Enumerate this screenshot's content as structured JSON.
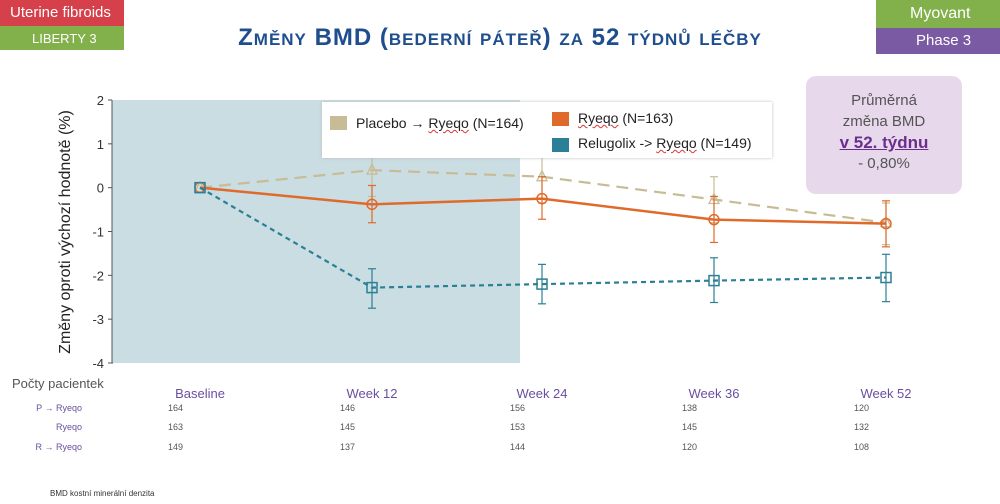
{
  "tags": {
    "uterine": "Uterine fibroids",
    "liberty": "LIBERTY 3",
    "myovant": "Myovant",
    "phase": "Phase 3",
    "colors": {
      "red": "#d6404a",
      "green": "#82b04a",
      "purple": "#7a5aa3"
    }
  },
  "title": "Změny BMD (bederní páteř) za 52 týdnů léčby",
  "chart_data": {
    "type": "line",
    "title": "",
    "ylabel": "Změny oproti výchozí hodnotě (%)",
    "xlabel": "",
    "ylim": [
      -4,
      2
    ],
    "yticks": [
      "2",
      "1",
      "0",
      "-1",
      "-2",
      "-3",
      "-4"
    ],
    "categories": [
      "Baseline",
      "Week 12",
      "Week 24",
      "Week 36",
      "Week 52"
    ],
    "shaded_region": {
      "from": "Baseline",
      "to": "Week 24",
      "color": "#c9dde3"
    },
    "series": [
      {
        "name": "Placebo → Ryeqo (N=164)",
        "color": "#c8bc96",
        "style": "long-dash",
        "marker": "triangle",
        "values": [
          0,
          0.4,
          0.25,
          -0.27,
          -0.8
        ],
        "err_low": [
          0,
          -0.2,
          -0.35,
          -0.8,
          -1.3
        ],
        "err_high": [
          0,
          0.9,
          0.7,
          0.25,
          -0.35
        ]
      },
      {
        "name": "Ryeqo (N=163)",
        "color": "#e06a2b",
        "style": "solid",
        "marker": "circle",
        "values": [
          0,
          -0.38,
          -0.25,
          -0.73,
          -0.82
        ],
        "err_low": [
          0,
          -0.8,
          -0.72,
          -1.25,
          -1.35
        ],
        "err_high": [
          0,
          0.05,
          0.25,
          -0.2,
          -0.3
        ]
      },
      {
        "name": "Relugolix -> Ryeqo (N=149)",
        "color": "#2b7f96",
        "style": "short-dash",
        "marker": "square",
        "values": [
          0,
          -2.28,
          -2.2,
          -2.12,
          -2.05
        ],
        "err_low": [
          0,
          -2.75,
          -2.65,
          -2.62,
          -2.6
        ],
        "err_high": [
          0,
          -1.85,
          -1.75,
          -1.6,
          -1.52
        ]
      }
    ]
  },
  "legend": {
    "placebo": {
      "prefix": "Placebo → ",
      "drug": "Ryeqo",
      "suffix": " (N=164)"
    },
    "ryeqo": {
      "drug": "Ryeqo",
      "suffix": " (N=163)"
    },
    "relugolix": {
      "prefix": "Relugolix -> ",
      "drug": "Ryeqo",
      "suffix": " (N=149)"
    }
  },
  "callout": {
    "line1": "Průměrná",
    "line2": "změna BMD",
    "line3": "v 52. týdnu",
    "line4": "- 0,80%"
  },
  "patient_counts": {
    "title": "Počty pacientek",
    "rows": [
      {
        "label": "P → Ryeqo",
        "values": [
          "164",
          "146",
          "156",
          "138",
          "120"
        ]
      },
      {
        "label": "Ryeqo",
        "values": [
          "163",
          "145",
          "153",
          "145",
          "132"
        ]
      },
      {
        "label": "R → Ryeqo",
        "values": [
          "149",
          "137",
          "144",
          "120",
          "108"
        ]
      }
    ]
  },
  "footnote": "BMD kostní minerální denzita"
}
